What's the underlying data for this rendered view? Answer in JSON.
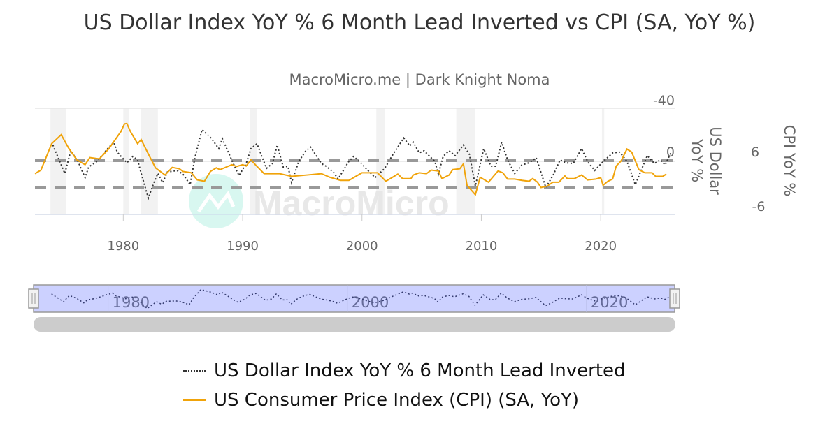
{
  "header": {
    "title": "US Dollar Index YoY % 6 Month Lead Inverted vs CPI (SA, YoY %)",
    "subtitle": "MacroMicro.me | Dark Knight Noma"
  },
  "watermark": "MacroMicro",
  "chart_data": {
    "type": "line",
    "title": "US Dollar Index YoY % 6 Month Lead Inverted vs CPI (SA, YoY %)",
    "subtitle": "MacroMicro.me | Dark Knight Noma",
    "xlim": [
      1972.6,
      2026.2
    ],
    "x_ticks": [
      "1980",
      "1990",
      "2000",
      "2010",
      "2020"
    ],
    "axes": {
      "dollar": {
        "label": "US Dollar YoY %",
        "range": [
          -40,
          40
        ],
        "reversed": true,
        "ticks": [
          "-40",
          "0"
        ]
      },
      "cpi": {
        "label": "CPI YoY %",
        "range": [
          -6,
          17.7
        ],
        "ticks": [
          "6",
          "-6"
        ]
      }
    },
    "reference_lines_cpi": [
      6,
      0
    ],
    "recessions": [
      [
        1973.9,
        1975.2
      ],
      [
        1980.0,
        1980.5
      ],
      [
        1981.5,
        1982.9
      ],
      [
        1990.6,
        1991.2
      ],
      [
        2001.2,
        2001.9
      ],
      [
        2007.9,
        2009.5
      ],
      [
        2020.1,
        2020.3
      ]
    ],
    "grid": true,
    "legend_position": "bottom",
    "colors": {
      "dollar": "#333333",
      "cpi": "#f0a30a",
      "navigator": "#ccd1ff",
      "recession": "#f2f2f2"
    },
    "series": [
      {
        "name": "US Dollar Index YoY % 6 Month Lead Inverted",
        "axis": "dollar",
        "style": "dotted",
        "points": [
          [
            1974.1,
            -12.3
          ],
          [
            1975.1,
            9.1
          ],
          [
            1975.6,
            -8
          ],
          [
            1976.2,
            0
          ],
          [
            1976.8,
            12.3
          ],
          [
            1977.1,
            4.3
          ],
          [
            1977.8,
            0
          ],
          [
            1978.7,
            -9.6
          ],
          [
            1979.2,
            -14.4
          ],
          [
            1979.5,
            -6.9
          ],
          [
            1980.3,
            1.1
          ],
          [
            1980.8,
            -3.7
          ],
          [
            1981.2,
            -1.1
          ],
          [
            1981.5,
            9.1
          ],
          [
            1982.1,
            27.7
          ],
          [
            1982.5,
            17.6
          ],
          [
            1982.9,
            9.1
          ],
          [
            1983.3,
            16
          ],
          [
            1983.7,
            8
          ],
          [
            1984.5,
            6.9
          ],
          [
            1985.0,
            9.6
          ],
          [
            1985.6,
            17.6
          ],
          [
            1986.0,
            -2.7
          ],
          [
            1986.6,
            -24
          ],
          [
            1987.4,
            -17.1
          ],
          [
            1988.0,
            -9.6
          ],
          [
            1988.3,
            -17.1
          ],
          [
            1988.8,
            -6.9
          ],
          [
            1989.4,
            5.3
          ],
          [
            1989.7,
            10.7
          ],
          [
            1990.3,
            1.6
          ],
          [
            1990.7,
            -9.6
          ],
          [
            1991.2,
            -13.3
          ],
          [
            1992.0,
            5.3
          ],
          [
            1992.5,
            1.6
          ],
          [
            1992.9,
            -12.3
          ],
          [
            1993.4,
            4.3
          ],
          [
            1993.8,
            3.7
          ],
          [
            1994.1,
            16
          ],
          [
            1994.7,
            0
          ],
          [
            1995.3,
            -8
          ],
          [
            1995.7,
            -10.7
          ],
          [
            1996.6,
            1.6
          ],
          [
            1997.0,
            3.7
          ],
          [
            1997.6,
            8
          ],
          [
            1998.0,
            13.3
          ],
          [
            1998.9,
            0
          ],
          [
            1999.3,
            -3.7
          ],
          [
            1999.9,
            1.1
          ],
          [
            2000.5,
            6.9
          ],
          [
            2001.1,
            12.3
          ],
          [
            2001.9,
            5.3
          ],
          [
            2002.6,
            -5.3
          ],
          [
            2003.5,
            -17.6
          ],
          [
            2004.0,
            -11.7
          ],
          [
            2004.3,
            -14.4
          ],
          [
            2004.8,
            -6.4
          ],
          [
            2005.2,
            -8
          ],
          [
            2006.1,
            0
          ],
          [
            2006.4,
            9.6
          ],
          [
            2006.8,
            -3.7
          ],
          [
            2007.3,
            -8
          ],
          [
            2007.8,
            -4.3
          ],
          [
            2008.5,
            -12.3
          ],
          [
            2009.0,
            -5.3
          ],
          [
            2009.5,
            18.7
          ],
          [
            2010.2,
            -9.6
          ],
          [
            2010.8,
            3.7
          ],
          [
            2011.2,
            3.7
          ],
          [
            2011.7,
            -14.4
          ],
          [
            2012.2,
            -1.1
          ],
          [
            2012.8,
            9.1
          ],
          [
            2013.4,
            2.7
          ],
          [
            2014.0,
            1.1
          ],
          [
            2014.6,
            -2.7
          ],
          [
            2015.4,
            19.7
          ],
          [
            2016.0,
            10.7
          ],
          [
            2016.6,
            -1.1
          ],
          [
            2017.1,
            1.1
          ],
          [
            2017.7,
            1.6
          ],
          [
            2018.4,
            -9.6
          ],
          [
            2018.9,
            0
          ],
          [
            2019.5,
            6.9
          ],
          [
            2020.1,
            1.1
          ],
          [
            2021.0,
            -6.4
          ],
          [
            2021.6,
            -6.9
          ],
          [
            2022.2,
            0
          ],
          [
            2022.9,
            17.6
          ],
          [
            2023.9,
            -4.3
          ],
          [
            2024.5,
            1.6
          ],
          [
            2025.0,
            -1.1
          ],
          [
            2025.4,
            2.7
          ],
          [
            2025.9,
            -6.9
          ]
        ]
      },
      {
        "name": "US Consumer Price Index (CPI) (SA, YoY)",
        "axis": "cpi",
        "style": "solid",
        "points": [
          [
            1972.6,
            3.1
          ],
          [
            1973.1,
            3.9
          ],
          [
            1974.0,
            9.8
          ],
          [
            1974.8,
            11.8
          ],
          [
            1975.4,
            8.9
          ],
          [
            1976.1,
            6.2
          ],
          [
            1976.8,
            5.1
          ],
          [
            1977.2,
            6.7
          ],
          [
            1978.0,
            6.4
          ],
          [
            1978.8,
            8.7
          ],
          [
            1979.8,
            12.5
          ],
          [
            1980.1,
            14.2
          ],
          [
            1980.3,
            14.3
          ],
          [
            1980.6,
            12.5
          ],
          [
            1981.2,
            9.8
          ],
          [
            1981.5,
            10.7
          ],
          [
            1982.1,
            7.5
          ],
          [
            1982.7,
            4.4
          ],
          [
            1983.5,
            2.8
          ],
          [
            1984.1,
            4.5
          ],
          [
            1984.7,
            4.2
          ],
          [
            1985.0,
            3.6
          ],
          [
            1985.7,
            3.3
          ],
          [
            1986.2,
            1.7
          ],
          [
            1986.8,
            1.4
          ],
          [
            1987.3,
            3.6
          ],
          [
            1987.8,
            4.4
          ],
          [
            1988.1,
            4.0
          ],
          [
            1989.1,
            5.1
          ],
          [
            1989.5,
            4.7
          ],
          [
            1990.0,
            5.1
          ],
          [
            1990.3,
            4.8
          ],
          [
            1990.7,
            6.2
          ],
          [
            1991.1,
            5.0
          ],
          [
            1991.8,
            3.1
          ],
          [
            1993.1,
            3.1
          ],
          [
            1994.1,
            2.5
          ],
          [
            1995.4,
            2.8
          ],
          [
            1996.6,
            3.1
          ],
          [
            1997.3,
            2.3
          ],
          [
            1998.2,
            1.6
          ],
          [
            1998.9,
            1.6
          ],
          [
            1999.1,
            1.9
          ],
          [
            2000.0,
            3.3
          ],
          [
            2001.3,
            3.3
          ],
          [
            2002.0,
            1.4
          ],
          [
            2003.0,
            3.0
          ],
          [
            2003.4,
            2.0
          ],
          [
            2004.1,
            2.0
          ],
          [
            2004.3,
            2.8
          ],
          [
            2004.8,
            3.3
          ],
          [
            2005.4,
            3.1
          ],
          [
            2005.8,
            3.9
          ],
          [
            2006.4,
            3.7
          ],
          [
            2006.7,
            2.0
          ],
          [
            2007.3,
            2.8
          ],
          [
            2007.6,
            4.0
          ],
          [
            2008.2,
            4.2
          ],
          [
            2008.5,
            5.3
          ],
          [
            2008.8,
            0.5
          ],
          [
            2009.5,
            -1.6
          ],
          [
            2009.9,
            2.3
          ],
          [
            2010.6,
            1.2
          ],
          [
            2011.4,
            3.7
          ],
          [
            2011.8,
            3.3
          ],
          [
            2012.2,
            1.9
          ],
          [
            2012.8,
            1.9
          ],
          [
            2013.4,
            1.6
          ],
          [
            2014.0,
            1.4
          ],
          [
            2014.3,
            2.0
          ],
          [
            2014.7,
            1.2
          ],
          [
            2015.0,
            0.0
          ],
          [
            2015.5,
            0.3
          ],
          [
            2016.0,
            1.2
          ],
          [
            2016.5,
            1.2
          ],
          [
            2017.0,
            2.6
          ],
          [
            2017.2,
            2.0
          ],
          [
            2017.8,
            2.0
          ],
          [
            2018.4,
            2.8
          ],
          [
            2018.9,
            1.7
          ],
          [
            2019.6,
            1.9
          ],
          [
            2020.0,
            2.2
          ],
          [
            2020.2,
            0.5
          ],
          [
            2020.6,
            1.4
          ],
          [
            2021.0,
            1.9
          ],
          [
            2021.3,
            4.8
          ],
          [
            2021.7,
            5.9
          ],
          [
            2022.2,
            8.6
          ],
          [
            2022.6,
            7.9
          ],
          [
            2023.2,
            4.0
          ],
          [
            2023.7,
            3.3
          ],
          [
            2024.3,
            3.3
          ],
          [
            2024.6,
            2.5
          ],
          [
            2025.2,
            2.5
          ],
          [
            2025.5,
            3.0
          ]
        ]
      }
    ],
    "navigator": {
      "x_ticks": [
        "1980",
        "2000",
        "2020"
      ]
    }
  },
  "legend": [
    {
      "label": "US Dollar Index YoY % 6 Month Lead Inverted"
    },
    {
      "label": "US Consumer Price Index (CPI) (SA, YoY)"
    }
  ]
}
